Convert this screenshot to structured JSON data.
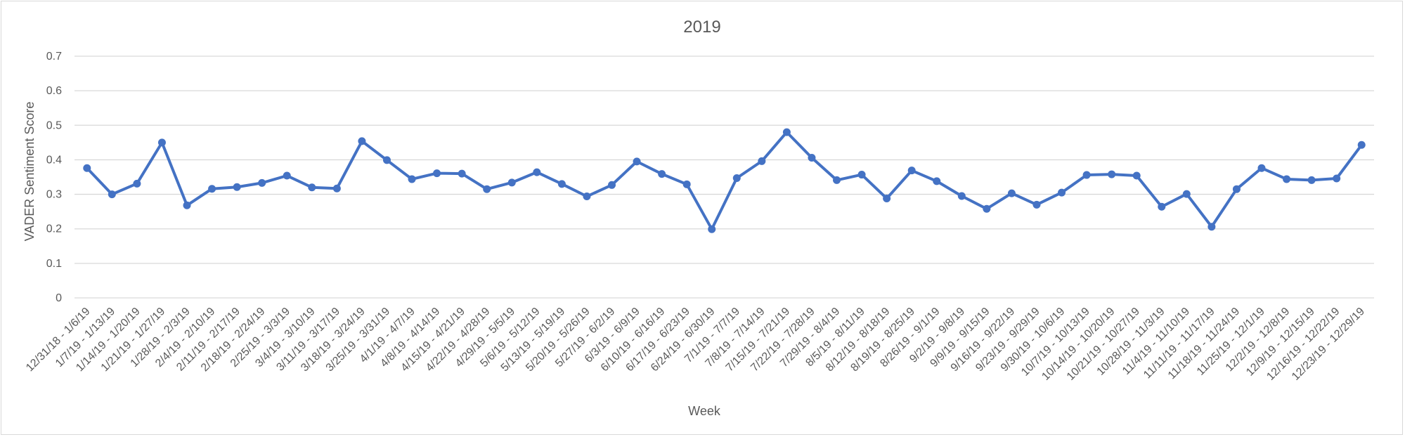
{
  "chart_data": {
    "type": "line",
    "title": "2019",
    "xlabel": "Week",
    "ylabel": "VADER Sentiment Score",
    "ylim": [
      0,
      0.7
    ],
    "yticks": [
      "0",
      "0.1",
      "0.2",
      "0.3",
      "0.4",
      "0.5",
      "0.6",
      "0.7"
    ],
    "grid": true,
    "legend": "none",
    "line_color": "#4472c4",
    "categories": [
      "12/31/18 - 1/6/19",
      "1/7/19 - 1/13/19",
      "1/14/19 - 1/20/19",
      "1/21/19 - 1/27/19",
      "1/28/19 - 2/3/19",
      "2/4/19 - 2/10/19",
      "2/11/19 - 2/17/19",
      "2/18/19 - 2/24/19",
      "2/25/19 - 3/3/19",
      "3/4/19 - 3/10/19",
      "3/11/19 - 3/17/19",
      "3/18/19 - 3/24/19",
      "3/25/19 - 3/31/19",
      "4/1/19 - 4/7/19",
      "4/8/19 - 4/14/19",
      "4/15/19 - 4/21/19",
      "4/22/19 - 4/28/19",
      "4/29/19 - 5/5/19",
      "5/6/19 - 5/12/19",
      "5/13/19 - 5/19/19",
      "5/20/19 - 5/26/19",
      "5/27/19 - 6/2/19",
      "6/3/19 - 6/9/19",
      "6/10/19 - 6/16/19",
      "6/17/19 - 6/23/19",
      "6/24/19 - 6/30/19",
      "7/1/19 - 7/7/19",
      "7/8/19 - 7/14/19",
      "7/15/19 - 7/21/19",
      "7/22/19 - 7/28/19",
      "7/29/19 - 8/4/19",
      "8/5/19 - 8/11/19",
      "8/12/19 - 8/18/19",
      "8/19/19 - 8/25/19",
      "8/26/19 - 9/1/19",
      "9/2/19 - 9/8/19",
      "9/9/19 - 9/15/19",
      "9/16/19 - 9/22/19",
      "9/23/19 - 9/29/19",
      "9/30/19 - 10/6/19",
      "10/7/19 - 10/13/19",
      "10/14/19 - 10/20/19",
      "10/21/19 - 10/27/19",
      "10/28/19 - 11/3/19",
      "11/4/19 - 11/10/19",
      "11/11/19 - 11/17/19",
      "11/18/19 - 11/24/19",
      "11/25/19 - 12/1/19",
      "12/2/19 - 12/8/19",
      "12/9/19 - 12/15/19",
      "12/16/19 - 12/22/19",
      "12/23/19 - 12/29/19"
    ],
    "values": [
      0.376,
      0.3,
      0.331,
      0.45,
      0.268,
      0.316,
      0.321,
      0.333,
      0.354,
      0.32,
      0.317,
      0.454,
      0.399,
      0.344,
      0.361,
      0.36,
      0.315,
      0.334,
      0.364,
      0.33,
      0.294,
      0.327,
      0.395,
      0.359,
      0.329,
      0.199,
      0.347,
      0.396,
      0.48,
      0.406,
      0.341,
      0.357,
      0.288,
      0.369,
      0.338,
      0.295,
      0.258,
      0.303,
      0.27,
      0.305,
      0.356,
      0.358,
      0.354,
      0.264,
      0.301,
      0.206,
      0.315,
      0.376,
      0.344,
      0.341,
      0.346,
      0.443
    ]
  }
}
